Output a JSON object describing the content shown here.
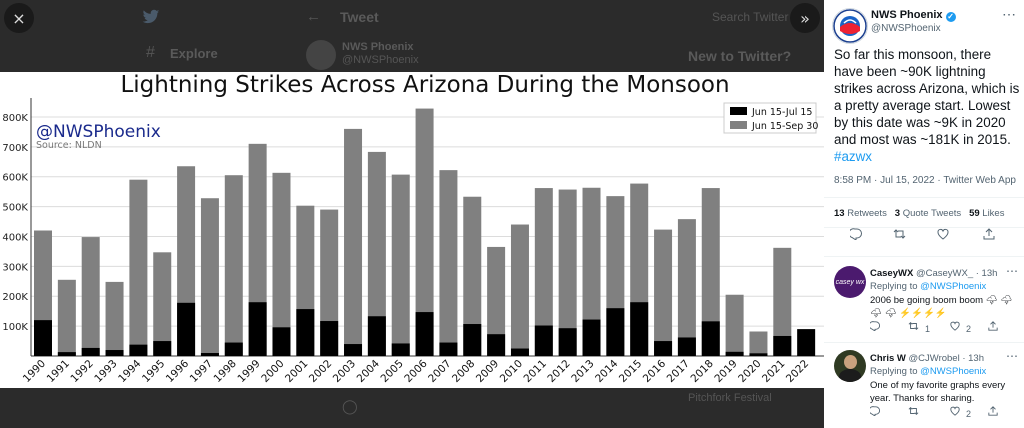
{
  "background": {
    "tweet_header": "Tweet",
    "explore": "Explore",
    "author_name": "NWS Phoenix",
    "author_handle": "@NWSPhoenix",
    "search_placeholder": "Search Twitter",
    "new_to_twitter": "New to Twitter?",
    "bottom_text": "Pitchfork Festival"
  },
  "viewer": {
    "close_icon": "×",
    "expand_icon": "»"
  },
  "chart_data": {
    "type": "bar",
    "title": "Lightning Strikes Across Arizona During the Monsoon",
    "watermark": "@NWSPhoenix",
    "source": "Source: NLDN",
    "categories": [
      "1990",
      "1991",
      "1992",
      "1993",
      "1994",
      "1995",
      "1996",
      "1997",
      "1998",
      "1999",
      "2000",
      "2001",
      "2002",
      "2003",
      "2004",
      "2005",
      "2006",
      "2007",
      "2008",
      "2009",
      "2010",
      "2011",
      "2012",
      "2013",
      "2014",
      "2015",
      "2016",
      "2017",
      "2018",
      "2019",
      "2020",
      "2021",
      "2022"
    ],
    "series": [
      {
        "name": "Jun 15-Sep 30",
        "color": "#808080",
        "values": [
          420000,
          255000,
          398000,
          248000,
          590000,
          347000,
          635000,
          528000,
          605000,
          710000,
          613000,
          503000,
          490000,
          760000,
          683000,
          607000,
          828000,
          622000,
          533000,
          365000,
          440000,
          562000,
          557000,
          563000,
          535000,
          577000,
          423000,
          458000,
          562000,
          205000,
          82000,
          362000,
          null
        ]
      },
      {
        "name": "Jun 15-Jul 15",
        "color": "#000000",
        "values": [
          120000,
          13000,
          27000,
          20000,
          38000,
          50000,
          178000,
          10000,
          45000,
          180000,
          96000,
          157000,
          117000,
          40000,
          133000,
          42000,
          147000,
          45000,
          107000,
          73000,
          25000,
          102000,
          93000,
          122000,
          160000,
          180000,
          50000,
          62000,
          116000,
          14000,
          9000,
          67000,
          90000
        ]
      }
    ],
    "ylim": [
      0,
      850000
    ],
    "yticks": [
      100000,
      200000,
      300000,
      400000,
      500000,
      600000,
      700000,
      800000
    ],
    "ytick_labels": [
      "100K",
      "200K",
      "300K",
      "400K",
      "500K",
      "600K",
      "700K",
      "800K"
    ],
    "legend": [
      "Jun 15-Jul 15",
      "Jun 15-Sep 30"
    ],
    "legend_position": "top-right",
    "grid": true
  },
  "tweet": {
    "author_name": "NWS Phoenix",
    "author_handle": "@NWSPhoenix",
    "text": "So far this monsoon, there have been ~90K lightning strikes across Arizona, which is a pretty average start. Lowest by this date was ~9K in 2020 and most was ~181K in 2015.",
    "hashtag": "#azwx",
    "timestamp": "8:58 PM · Jul 15, 2022 · Twitter Web App",
    "retweets_count": "13",
    "retweets_label": "Retweets",
    "quotes_count": "3",
    "quotes_label": "Quote Tweets",
    "likes_count": "59",
    "likes_label": "Likes",
    "avatar_text": "NATIONAL WEATHER"
  },
  "replies": [
    {
      "name": "CaseyWX",
      "handle_time": "@CaseyWX_ · 13h",
      "replying_prefix": "Replying to",
      "replying_to": "@NWSPhoenix",
      "text": "2006 be going boom boom 🌩 🌩 🌩 🌩 ⚡⚡⚡⚡",
      "retweets": "1",
      "likes": "2",
      "avatar_text": "casey wx"
    },
    {
      "name": "Chris W",
      "handle_time": "@CJWrobel · 13h",
      "replying_prefix": "Replying to",
      "replying_to": "@NWSPhoenix",
      "text": "One of my favorite graphs every year. Thanks for sharing.",
      "retweets": "",
      "likes": "2"
    }
  ]
}
